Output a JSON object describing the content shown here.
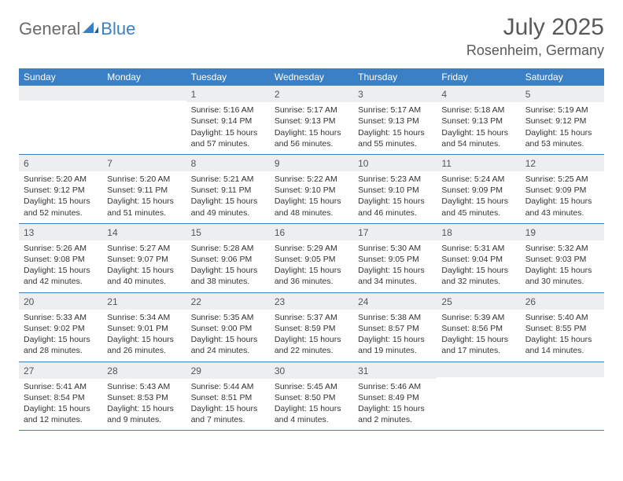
{
  "brand": {
    "part1": "General",
    "part2": "Blue"
  },
  "title": "July 2025",
  "location": "Rosenheim, Germany",
  "header_color": "#3b7fc4",
  "daynum_bg": "#eceeef",
  "dayNames": [
    "Sunday",
    "Monday",
    "Tuesday",
    "Wednesday",
    "Thursday",
    "Friday",
    "Saturday"
  ],
  "weeks": [
    [
      null,
      null,
      {
        "n": "1",
        "sr": "5:16 AM",
        "ss": "9:14 PM",
        "dl": "15 hours and 57 minutes."
      },
      {
        "n": "2",
        "sr": "5:17 AM",
        "ss": "9:13 PM",
        "dl": "15 hours and 56 minutes."
      },
      {
        "n": "3",
        "sr": "5:17 AM",
        "ss": "9:13 PM",
        "dl": "15 hours and 55 minutes."
      },
      {
        "n": "4",
        "sr": "5:18 AM",
        "ss": "9:13 PM",
        "dl": "15 hours and 54 minutes."
      },
      {
        "n": "5",
        "sr": "5:19 AM",
        "ss": "9:12 PM",
        "dl": "15 hours and 53 minutes."
      }
    ],
    [
      {
        "n": "6",
        "sr": "5:20 AM",
        "ss": "9:12 PM",
        "dl": "15 hours and 52 minutes."
      },
      {
        "n": "7",
        "sr": "5:20 AM",
        "ss": "9:11 PM",
        "dl": "15 hours and 51 minutes."
      },
      {
        "n": "8",
        "sr": "5:21 AM",
        "ss": "9:11 PM",
        "dl": "15 hours and 49 minutes."
      },
      {
        "n": "9",
        "sr": "5:22 AM",
        "ss": "9:10 PM",
        "dl": "15 hours and 48 minutes."
      },
      {
        "n": "10",
        "sr": "5:23 AM",
        "ss": "9:10 PM",
        "dl": "15 hours and 46 minutes."
      },
      {
        "n": "11",
        "sr": "5:24 AM",
        "ss": "9:09 PM",
        "dl": "15 hours and 45 minutes."
      },
      {
        "n": "12",
        "sr": "5:25 AM",
        "ss": "9:09 PM",
        "dl": "15 hours and 43 minutes."
      }
    ],
    [
      {
        "n": "13",
        "sr": "5:26 AM",
        "ss": "9:08 PM",
        "dl": "15 hours and 42 minutes."
      },
      {
        "n": "14",
        "sr": "5:27 AM",
        "ss": "9:07 PM",
        "dl": "15 hours and 40 minutes."
      },
      {
        "n": "15",
        "sr": "5:28 AM",
        "ss": "9:06 PM",
        "dl": "15 hours and 38 minutes."
      },
      {
        "n": "16",
        "sr": "5:29 AM",
        "ss": "9:05 PM",
        "dl": "15 hours and 36 minutes."
      },
      {
        "n": "17",
        "sr": "5:30 AM",
        "ss": "9:05 PM",
        "dl": "15 hours and 34 minutes."
      },
      {
        "n": "18",
        "sr": "5:31 AM",
        "ss": "9:04 PM",
        "dl": "15 hours and 32 minutes."
      },
      {
        "n": "19",
        "sr": "5:32 AM",
        "ss": "9:03 PM",
        "dl": "15 hours and 30 minutes."
      }
    ],
    [
      {
        "n": "20",
        "sr": "5:33 AM",
        "ss": "9:02 PM",
        "dl": "15 hours and 28 minutes."
      },
      {
        "n": "21",
        "sr": "5:34 AM",
        "ss": "9:01 PM",
        "dl": "15 hours and 26 minutes."
      },
      {
        "n": "22",
        "sr": "5:35 AM",
        "ss": "9:00 PM",
        "dl": "15 hours and 24 minutes."
      },
      {
        "n": "23",
        "sr": "5:37 AM",
        "ss": "8:59 PM",
        "dl": "15 hours and 22 minutes."
      },
      {
        "n": "24",
        "sr": "5:38 AM",
        "ss": "8:57 PM",
        "dl": "15 hours and 19 minutes."
      },
      {
        "n": "25",
        "sr": "5:39 AM",
        "ss": "8:56 PM",
        "dl": "15 hours and 17 minutes."
      },
      {
        "n": "26",
        "sr": "5:40 AM",
        "ss": "8:55 PM",
        "dl": "15 hours and 14 minutes."
      }
    ],
    [
      {
        "n": "27",
        "sr": "5:41 AM",
        "ss": "8:54 PM",
        "dl": "15 hours and 12 minutes."
      },
      {
        "n": "28",
        "sr": "5:43 AM",
        "ss": "8:53 PM",
        "dl": "15 hours and 9 minutes."
      },
      {
        "n": "29",
        "sr": "5:44 AM",
        "ss": "8:51 PM",
        "dl": "15 hours and 7 minutes."
      },
      {
        "n": "30",
        "sr": "5:45 AM",
        "ss": "8:50 PM",
        "dl": "15 hours and 4 minutes."
      },
      {
        "n": "31",
        "sr": "5:46 AM",
        "ss": "8:49 PM",
        "dl": "15 hours and 2 minutes."
      },
      null,
      null
    ]
  ],
  "labels": {
    "sunrise": "Sunrise:",
    "sunset": "Sunset:",
    "daylight": "Daylight:"
  }
}
